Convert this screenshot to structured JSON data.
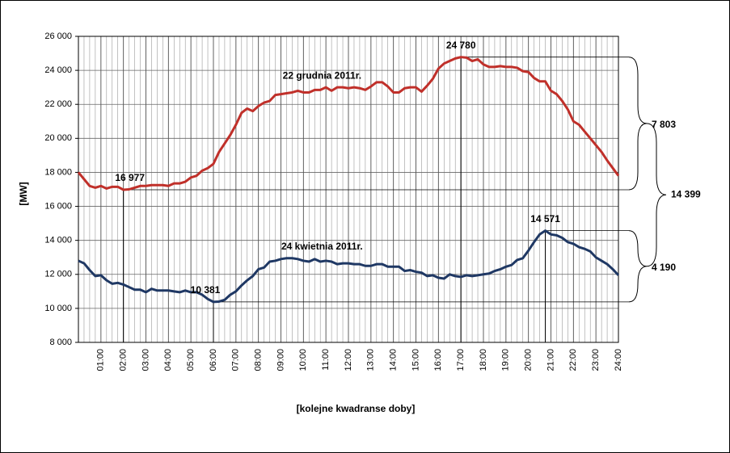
{
  "chart_data": {
    "type": "line",
    "y_label": "[MW]",
    "x_label": "[kolejne kwadranse doby]",
    "grid": true,
    "x_minor_step": 0.25,
    "xlim": [
      0,
      24
    ],
    "xticks": [
      {
        "value": 1,
        "label": "01:00"
      },
      {
        "value": 2,
        "label": "02:00"
      },
      {
        "value": 3,
        "label": "03:00"
      },
      {
        "value": 4,
        "label": "04:00"
      },
      {
        "value": 5,
        "label": "05:00"
      },
      {
        "value": 6,
        "label": "06:00"
      },
      {
        "value": 7,
        "label": "07:00"
      },
      {
        "value": 8,
        "label": "08:00"
      },
      {
        "value": 9,
        "label": "09:00"
      },
      {
        "value": 10,
        "label": "10:00"
      },
      {
        "value": 11,
        "label": "11:00"
      },
      {
        "value": 12,
        "label": "12:00"
      },
      {
        "value": 13,
        "label": "13:00"
      },
      {
        "value": 14,
        "label": "14:00"
      },
      {
        "value": 15,
        "label": "15:00"
      },
      {
        "value": 16,
        "label": "16:00"
      },
      {
        "value": 17,
        "label": "17:00"
      },
      {
        "value": 18,
        "label": "18:00"
      },
      {
        "value": 19,
        "label": "19:00"
      },
      {
        "value": 20,
        "label": "20:00"
      },
      {
        "value": 21,
        "label": "21:00"
      },
      {
        "value": 22,
        "label": "22:00"
      },
      {
        "value": 23,
        "label": "23:00"
      },
      {
        "value": 24,
        "label": "24:00"
      }
    ],
    "ylim": [
      8000,
      26000
    ],
    "yticks": [
      {
        "value": 8000,
        "label": "8 000"
      },
      {
        "value": 10000,
        "label": "10 000"
      },
      {
        "value": 12000,
        "label": "12 000"
      },
      {
        "value": 14000,
        "label": "14 000"
      },
      {
        "value": 16000,
        "label": "16 000"
      },
      {
        "value": 18000,
        "label": "18 000"
      },
      {
        "value": 20000,
        "label": "20 000"
      },
      {
        "value": 22000,
        "label": "22 000"
      },
      {
        "value": 24000,
        "label": "24 000"
      },
      {
        "value": 26000,
        "label": "26 000"
      }
    ],
    "x": [
      0,
      0.25,
      0.5,
      0.75,
      1,
      1.25,
      1.5,
      1.75,
      2,
      2.25,
      2.5,
      2.75,
      3,
      3.25,
      3.5,
      3.75,
      4,
      4.25,
      4.5,
      4.75,
      5,
      5.25,
      5.5,
      5.75,
      6,
      6.25,
      6.5,
      6.75,
      7,
      7.25,
      7.5,
      7.75,
      8,
      8.25,
      8.5,
      8.75,
      9,
      9.25,
      9.5,
      9.75,
      10,
      10.25,
      10.5,
      10.75,
      11,
      11.25,
      11.5,
      11.75,
      12,
      12.25,
      12.5,
      12.75,
      13,
      13.25,
      13.5,
      13.75,
      14,
      14.25,
      14.5,
      14.75,
      15,
      15.25,
      15.5,
      15.75,
      16,
      16.25,
      16.5,
      16.75,
      17,
      17.25,
      17.5,
      17.75,
      18,
      18.25,
      18.5,
      18.75,
      19,
      19.25,
      19.5,
      19.75,
      20,
      20.25,
      20.5,
      20.75,
      21,
      21.25,
      21.5,
      21.75,
      22,
      22.25,
      22.5,
      22.75,
      23,
      23.25,
      23.5,
      23.75,
      24
    ],
    "series": [
      {
        "name": "22 grudnia 2011r.",
        "color": "#c0302a",
        "values": [
          18000,
          17600,
          17200,
          17100,
          17200,
          17050,
          17150,
          17150,
          16977,
          17000,
          17100,
          17200,
          17200,
          17250,
          17250,
          17250,
          17200,
          17350,
          17350,
          17450,
          17700,
          17800,
          18100,
          18250,
          18500,
          19200,
          19700,
          20200,
          20800,
          21500,
          21750,
          21600,
          21900,
          22100,
          22200,
          22550,
          22600,
          22650,
          22700,
          22800,
          22700,
          22700,
          22850,
          22850,
          23000,
          22800,
          23000,
          23000,
          22950,
          23000,
          22950,
          22850,
          23050,
          23300,
          23300,
          23050,
          22700,
          22700,
          22950,
          23000,
          23000,
          22750,
          23100,
          23500,
          24100,
          24400,
          24550,
          24700,
          24780,
          24750,
          24550,
          24650,
          24350,
          24200,
          24200,
          24250,
          24200,
          24200,
          24150,
          23950,
          23900,
          23550,
          23350,
          23350,
          22800,
          22600,
          22200,
          21700,
          21000,
          20800,
          20400,
          20000,
          19600,
          19200,
          18700,
          18250,
          17800
        ]
      },
      {
        "name": "24 kwietnia 2011r.",
        "color": "#1f3864",
        "values": [
          12800,
          12650,
          12250,
          11900,
          11950,
          11650,
          11450,
          11500,
          11400,
          11250,
          11100,
          11100,
          10950,
          11150,
          11050,
          11050,
          11050,
          11000,
          10950,
          11050,
          10950,
          10950,
          10800,
          10550,
          10381,
          10400,
          10500,
          10800,
          11000,
          11350,
          11650,
          11900,
          12300,
          12400,
          12750,
          12800,
          12900,
          12950,
          12950,
          12900,
          12800,
          12750,
          12900,
          12750,
          12800,
          12750,
          12600,
          12650,
          12650,
          12600,
          12600,
          12500,
          12500,
          12600,
          12600,
          12450,
          12450,
          12450,
          12200,
          12250,
          12150,
          12100,
          11900,
          11950,
          11800,
          11750,
          12000,
          11900,
          11850,
          11950,
          11900,
          11950,
          12000,
          12050,
          12200,
          12300,
          12450,
          12550,
          12850,
          12950,
          13400,
          13900,
          14350,
          14571,
          14350,
          14300,
          14150,
          13900,
          13800,
          13600,
          13500,
          13350,
          13000,
          12800,
          12600,
          12300,
          11950
        ]
      }
    ],
    "annotations": [
      {
        "label": "16 977",
        "value": 16977
      },
      {
        "label": "24 780",
        "value": 24780
      },
      {
        "label": "10 381",
        "value": 10381
      },
      {
        "label": "14 571",
        "value": 14571
      }
    ],
    "differences": [
      {
        "label": "7 803",
        "value": 7803
      },
      {
        "label": "4 190",
        "value": 4190
      },
      {
        "label": "14 399",
        "value": 14399
      }
    ]
  }
}
